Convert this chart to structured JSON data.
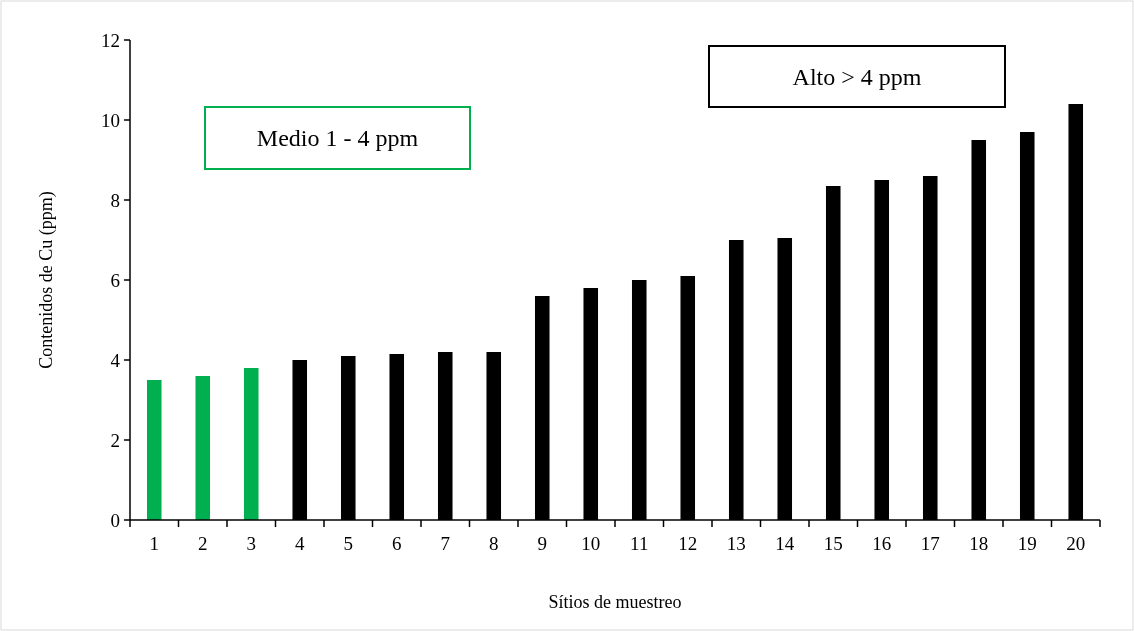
{
  "chart_data": {
    "type": "bar",
    "xlabel": "Sítios de muestreo",
    "ylabel": "Contenidos de Cu (ppm)",
    "categories": [
      "1",
      "2",
      "3",
      "4",
      "5",
      "6",
      "7",
      "8",
      "9",
      "10",
      "11",
      "12",
      "13",
      "14",
      "15",
      "16",
      "17",
      "18",
      "19",
      "20"
    ],
    "values": [
      3.5,
      3.6,
      3.8,
      4.0,
      4.1,
      4.15,
      4.2,
      4.2,
      5.6,
      5.8,
      6.0,
      6.1,
      7.0,
      7.05,
      8.35,
      8.5,
      8.6,
      9.5,
      9.7,
      10.4
    ],
    "colors": [
      "#00b050",
      "#00b050",
      "#00b050",
      "#000000",
      "#000000",
      "#000000",
      "#000000",
      "#000000",
      "#000000",
      "#000000",
      "#000000",
      "#000000",
      "#000000",
      "#000000",
      "#000000",
      "#000000",
      "#000000",
      "#000000",
      "#000000",
      "#000000"
    ],
    "ylim": [
      0,
      12
    ],
    "yticks": [
      0,
      2,
      4,
      6,
      8,
      10,
      12
    ],
    "grid": false,
    "annotations": [
      "Medio 1 - 4 ppm",
      "Alto > 4 ppm"
    ]
  }
}
